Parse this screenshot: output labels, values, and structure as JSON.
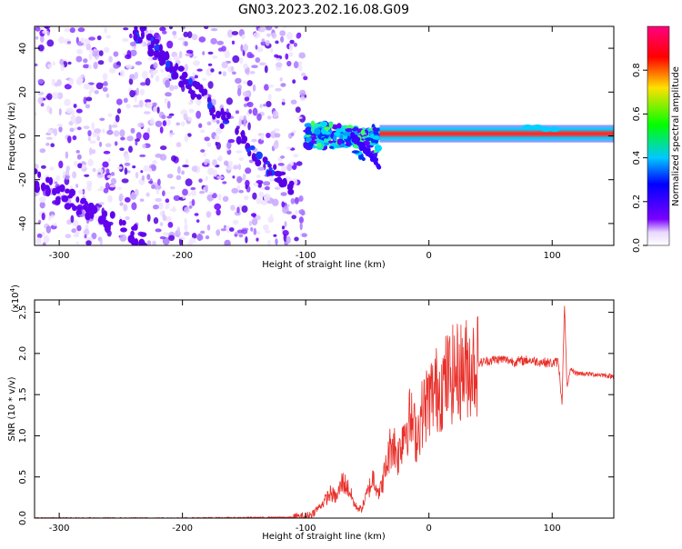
{
  "title": "GN03.2023.202.16.08.G09",
  "colors": {
    "snr_line": "#e8302a",
    "axis": "#000000",
    "background": "#ffffff"
  },
  "chart_data": [
    {
      "type": "heatmap",
      "xlabel": "Height of straight line (km)",
      "ylabel": "Frequency (Hz)",
      "xlim": [
        -320,
        150
      ],
      "ylim": [
        -50,
        50
      ],
      "x_ticks": [
        -300,
        -200,
        -100,
        0,
        100
      ],
      "y_ticks": [
        -40,
        -20,
        0,
        20,
        40
      ],
      "colorbar": {
        "label": "Normalized spectral amplitude",
        "range": [
          0.0,
          1.0
        ],
        "ticks": [
          "0.0",
          "0.2",
          "0.4",
          "0.6",
          "0.8"
        ]
      },
      "features": [
        {
          "x_start": -320,
          "x_end": -100,
          "freq_range": [
            -50,
            50
          ],
          "amplitude": 0.1
        },
        {
          "x_start": -240,
          "x_end": -110,
          "freq_start": 50,
          "freq_end": -25,
          "amplitude": 0.15
        },
        {
          "x_start": -100,
          "x_end": -40,
          "freq_range": [
            -12,
            12
          ],
          "amplitude": 0.4
        },
        {
          "x_start": -40,
          "x_end": 150,
          "freq": 1,
          "amplitude": 0.9
        }
      ]
    },
    {
      "type": "line",
      "xlabel": "Height of straight line (km)",
      "ylabel": "SNR (10 * v/v)",
      "multiplier_label": "(x10",
      "multiplier_exp": "4",
      "multiplier_close": ")",
      "xlim": [
        -320,
        150
      ],
      "ylim": [
        0.0,
        2.65
      ],
      "x_ticks": [
        -300,
        -200,
        -100,
        0,
        100
      ],
      "y_ticks": [
        "0.0",
        "0.5",
        "1.0",
        "1.5",
        "2.0",
        "2.5"
      ],
      "series": [
        {
          "x": [
            -320,
            -200,
            -110,
            -100,
            -95,
            -90,
            -85,
            -80,
            -75,
            -70,
            -65,
            -60,
            -55,
            -50,
            -45,
            -40,
            -35,
            -30,
            -25,
            -20,
            -15,
            -10,
            -5,
            0,
            5,
            10,
            15,
            20,
            30,
            40,
            50,
            60,
            70,
            80,
            90,
            100,
            105,
            108,
            110,
            112,
            115,
            120,
            130,
            140,
            150
          ],
          "y": [
            0.0,
            0.0,
            0.01,
            0.02,
            0.05,
            0.12,
            0.2,
            0.3,
            0.25,
            0.45,
            0.35,
            0.15,
            0.1,
            0.3,
            0.5,
            0.3,
            0.6,
            0.95,
            0.75,
            1.1,
            1.2,
            1.0,
            1.3,
            1.45,
            1.55,
            1.6,
            1.7,
            1.75,
            1.82,
            1.88,
            1.92,
            1.93,
            1.9,
            1.92,
            1.9,
            1.88,
            1.9,
            1.4,
            2.6,
            1.6,
            1.8,
            1.76,
            1.75,
            1.74,
            1.72
          ]
        }
      ]
    }
  ]
}
